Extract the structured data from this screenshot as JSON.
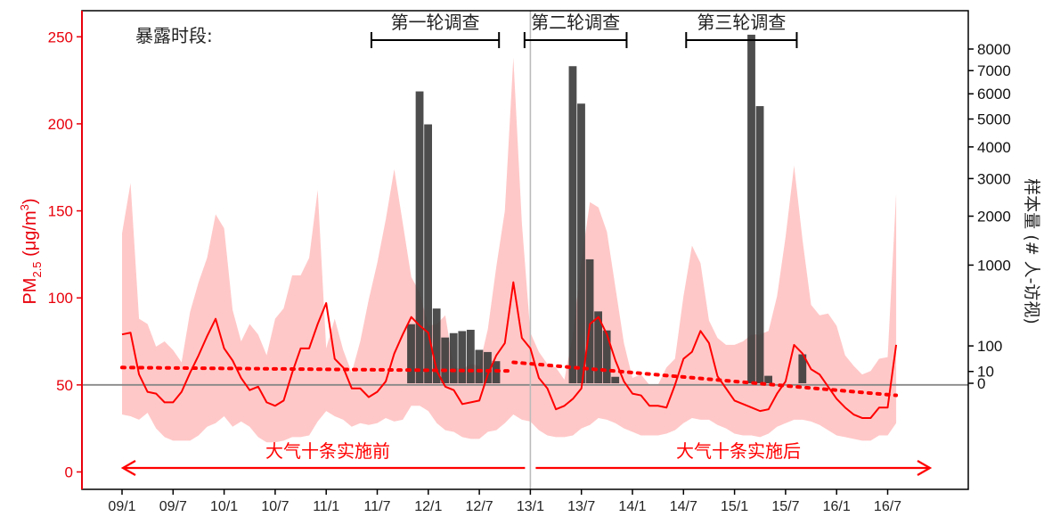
{
  "chart_data": {
    "type": "line",
    "y_left": {
      "label_main": "PM",
      "label_sub": "2.5",
      "label_unit": " (μg/m",
      "label_sup": "3",
      "label_close": ")",
      "ticks": [
        0,
        50,
        100,
        150,
        200,
        250
      ],
      "range": [
        -10,
        265
      ],
      "color": "#e8000b"
    },
    "y_right": {
      "label": "样本量 (# 人-访视)",
      "ticks": [
        0,
        10,
        100,
        1000,
        2000,
        3000,
        4000,
        5000,
        6000,
        7000,
        8000
      ],
      "tick_labels": [
        "0",
        "10",
        "100",
        "1000",
        "2000",
        "3000",
        "4000",
        "5000",
        "6000",
        "7000",
        "8000"
      ],
      "scale": "sqrt",
      "color": "#222222"
    },
    "x_ticks": [
      "09/1",
      "09/7",
      "10/1",
      "10/7",
      "11/1",
      "11/7",
      "12/1",
      "12/7",
      "13/1",
      "13/7",
      "14/1",
      "14/7",
      "15/1",
      "15/7",
      "16/1",
      "16/7"
    ],
    "reference_line": 50,
    "divider_at": "13/1",
    "colors": {
      "pm_line": "#ff0000",
      "band": "#ffc8c8",
      "bars": "#3a3a3a",
      "ref": "#888888"
    },
    "pm25_monthly": [
      79,
      80,
      56,
      46,
      45,
      40,
      40,
      46,
      57,
      67,
      78,
      88,
      71,
      64,
      54,
      47,
      49,
      40,
      38,
      41,
      57,
      71,
      71,
      85,
      97,
      65,
      60,
      48,
      48,
      43,
      46,
      52,
      68,
      79,
      89,
      84,
      80,
      58,
      49,
      47,
      39,
      40,
      41,
      56,
      67,
      74,
      109,
      77,
      71,
      54,
      48,
      36,
      38,
      42,
      48,
      85,
      89,
      79,
      64,
      52,
      45,
      44,
      38,
      38,
      37,
      50,
      65,
      69,
      81,
      74,
      55,
      48,
      41,
      39,
      37,
      35,
      36,
      45,
      52,
      73,
      68,
      59,
      56,
      49,
      42,
      37,
      33,
      31,
      31,
      37,
      37,
      73
    ],
    "band_upper": [
      137,
      166,
      88,
      85,
      72,
      75,
      70,
      63,
      92,
      109,
      123,
      148,
      140,
      93,
      75,
      85,
      79,
      67,
      88,
      94,
      113,
      113,
      123,
      162,
      71,
      88,
      70,
      57,
      75,
      99,
      120,
      145,
      174,
      143,
      112,
      103,
      84,
      85,
      90,
      60,
      59,
      62,
      61,
      82,
      118,
      150,
      238,
      143,
      80,
      69,
      62,
      60,
      53,
      79,
      121,
      155,
      152,
      138,
      106,
      74,
      54,
      56,
      50,
      50,
      60,
      65,
      101,
      130,
      120,
      87,
      77,
      73,
      73,
      75,
      79,
      79,
      81,
      101,
      135,
      176,
      133,
      96,
      90,
      91,
      84,
      67,
      61,
      56,
      58,
      65,
      66,
      160
    ],
    "band_lower": [
      33,
      32,
      30,
      34,
      25,
      20,
      18,
      18,
      18,
      21,
      26,
      28,
      32,
      26,
      29,
      26,
      20,
      17,
      17,
      18,
      20,
      20,
      21,
      29,
      35,
      32,
      30,
      26,
      28,
      27,
      28,
      31,
      29,
      30,
      38,
      38,
      35,
      28,
      24,
      23,
      20,
      19,
      19,
      23,
      24,
      28,
      33,
      30,
      29,
      24,
      21,
      20,
      20,
      21,
      25,
      27,
      31,
      30,
      28,
      25,
      23,
      21,
      21,
      21,
      22,
      24,
      28,
      31,
      30,
      30,
      27,
      25,
      22,
      21,
      21,
      20,
      22,
      26,
      28,
      30,
      30,
      29,
      27,
      24,
      21,
      20,
      19,
      18,
      18,
      21,
      21,
      28
    ],
    "trend_before": {
      "from": 0,
      "to": 46,
      "y_start": 60,
      "y_end": 58
    },
    "trend_after": {
      "from": 46,
      "to": 91,
      "y_start": 63,
      "y_end": 44
    },
    "bars": [
      {
        "m": 34,
        "v": 250
      },
      {
        "m": 35,
        "v": 6100
      },
      {
        "m": 36,
        "v": 4800
      },
      {
        "m": 37,
        "v": 400
      },
      {
        "m": 38,
        "v": 150
      },
      {
        "m": 39,
        "v": 180
      },
      {
        "m": 40,
        "v": 195
      },
      {
        "m": 41,
        "v": 205
      },
      {
        "m": 42,
        "v": 80
      },
      {
        "m": 43,
        "v": 70
      },
      {
        "m": 44,
        "v": 35
      },
      {
        "m": 53,
        "v": 7200
      },
      {
        "m": 54,
        "v": 5600
      },
      {
        "m": 55,
        "v": 1100
      },
      {
        "m": 56,
        "v": 370
      },
      {
        "m": 57,
        "v": 200
      },
      {
        "m": 58,
        "v": 3
      },
      {
        "m": 74,
        "v": 8700
      },
      {
        "m": 75,
        "v": 5500
      },
      {
        "m": 76,
        "v": 4
      },
      {
        "m": 80,
        "v": 60
      }
    ],
    "exposure_label": "暴露时段:",
    "rounds": [
      {
        "label": "第一轮调查",
        "start": 29,
        "end": 44
      },
      {
        "label": "第二轮调查",
        "start": 47,
        "end": 59
      },
      {
        "label": "第三轮调查",
        "start": 66,
        "end": 79
      }
    ],
    "policy_before": "大气十条实施前",
    "policy_after": "大气十条实施后"
  }
}
